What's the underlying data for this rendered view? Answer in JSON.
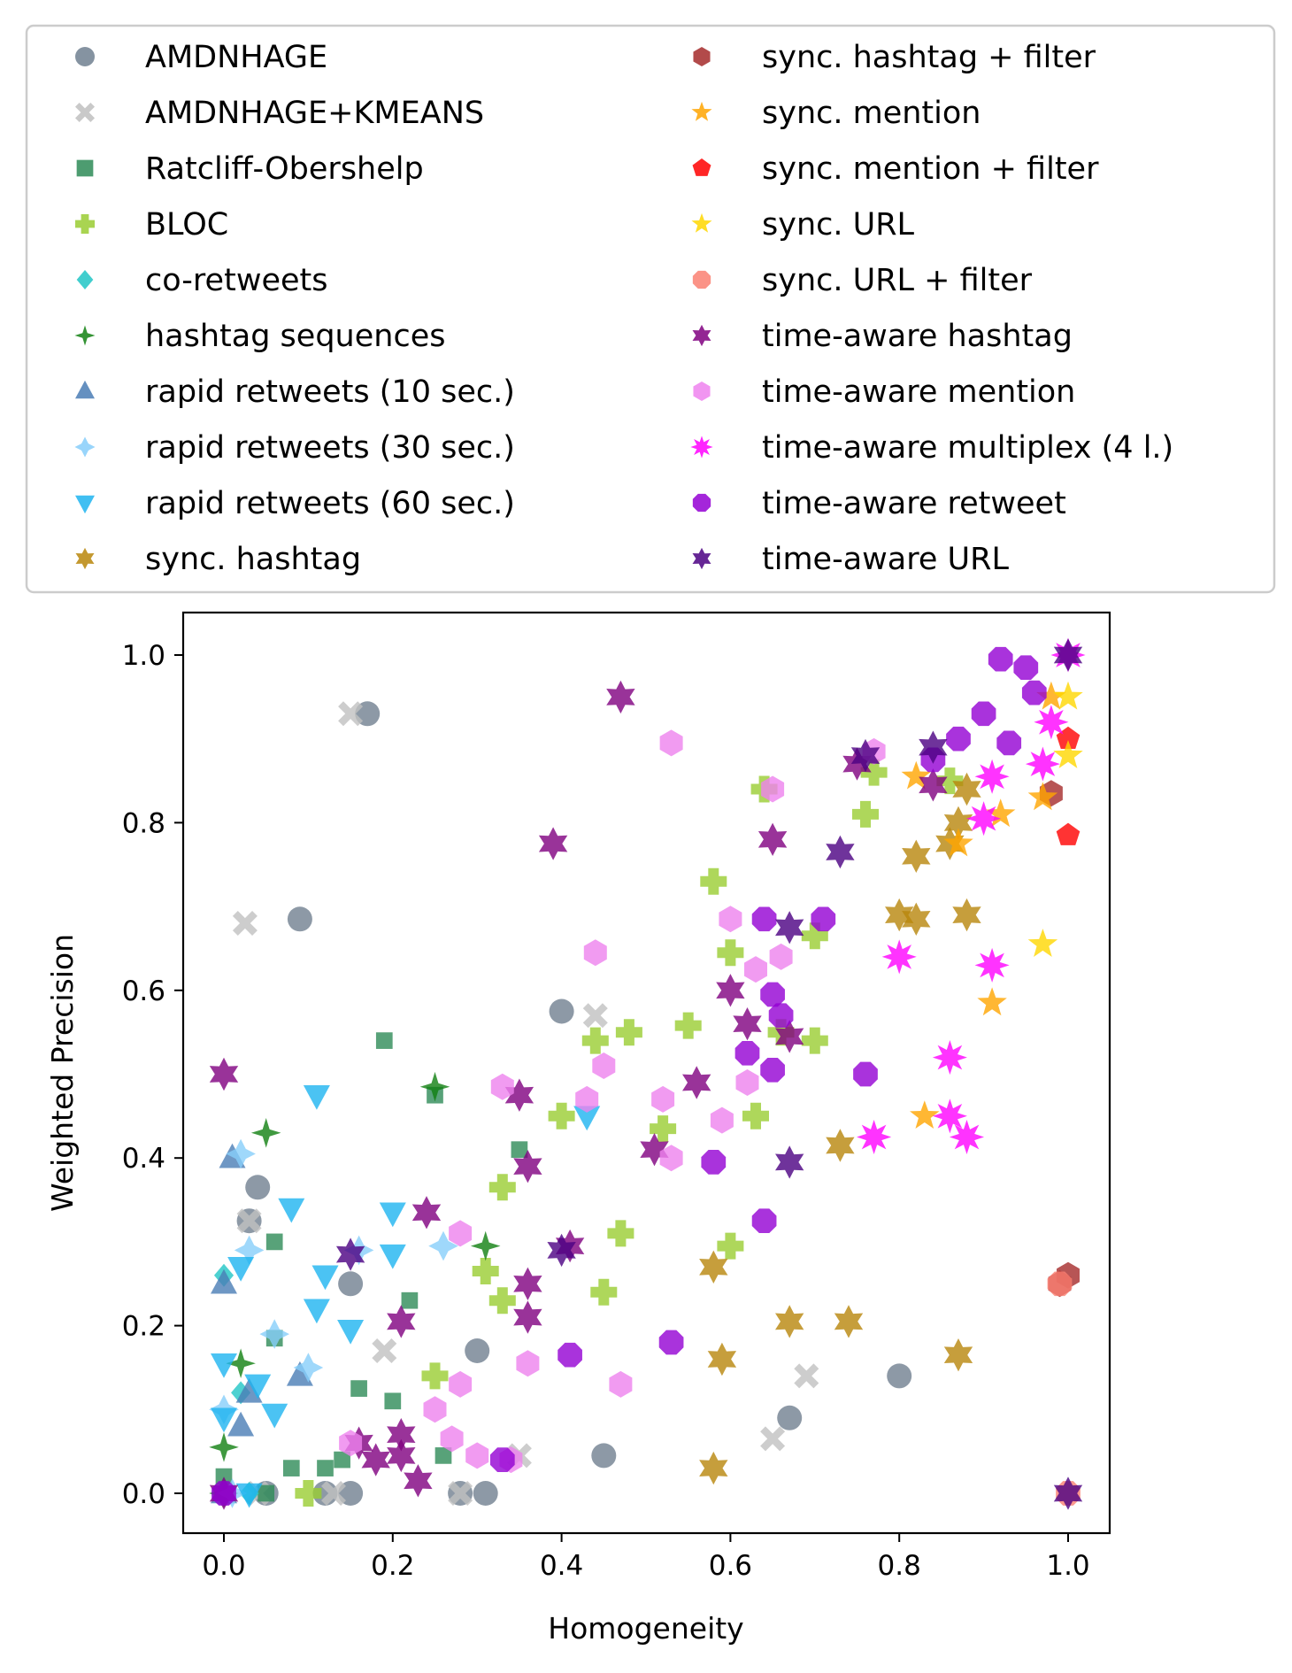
{
  "chart_data": {
    "type": "scatter",
    "title": "",
    "xlabel": "Homogeneity",
    "ylabel": "Weighted Precision",
    "xlim": [
      -0.05,
      1.05
    ],
    "ylim": [
      -0.05,
      1.05
    ],
    "xticks": [
      "0.0",
      "0.2",
      "0.4",
      "0.6",
      "0.8",
      "1.0"
    ],
    "yticks": [
      "0.0",
      "0.2",
      "0.4",
      "0.6",
      "0.8",
      "1.0"
    ],
    "grid": false,
    "legend_position": "top",
    "series": [
      {
        "name": "AMDNHAGE",
        "marker": "circle",
        "color": "#708090",
        "points": [
          [
            0.17,
            0.93
          ],
          [
            0.09,
            0.685
          ],
          [
            0.4,
            0.575
          ],
          [
            0.04,
            0.365
          ],
          [
            0.03,
            0.325
          ],
          [
            0.15,
            0.25
          ],
          [
            0.3,
            0.17
          ],
          [
            0.8,
            0.14
          ],
          [
            0.67,
            0.09
          ],
          [
            0.45,
            0.045
          ],
          [
            0.12,
            0.0
          ],
          [
            0.15,
            0.0
          ],
          [
            0.28,
            0.0
          ],
          [
            0.31,
            0.0
          ],
          [
            0.0,
            0.0
          ],
          [
            0.05,
            0.0
          ]
        ]
      },
      {
        "name": "AMDNHAGE+KMEANS",
        "marker": "x",
        "color": "#c0c0c0",
        "points": [
          [
            0.15,
            0.93
          ],
          [
            0.025,
            0.68
          ],
          [
            0.44,
            0.57
          ],
          [
            0.03,
            0.325
          ],
          [
            0.19,
            0.17
          ],
          [
            0.69,
            0.14
          ],
          [
            0.65,
            0.065
          ],
          [
            0.35,
            0.045
          ],
          [
            0.13,
            0.0
          ],
          [
            0.28,
            0.0
          ],
          [
            0.04,
            0.0
          ]
        ]
      },
      {
        "name": "Ratcliff-Obershelp",
        "marker": "square",
        "color": "#2e8b57",
        "points": [
          [
            0.19,
            0.54
          ],
          [
            0.25,
            0.475
          ],
          [
            0.35,
            0.41
          ],
          [
            0.06,
            0.3
          ],
          [
            0.22,
            0.23
          ],
          [
            0.06,
            0.185
          ],
          [
            0.16,
            0.125
          ],
          [
            0.2,
            0.11
          ],
          [
            0.08,
            0.03
          ],
          [
            0.12,
            0.03
          ],
          [
            0.14,
            0.04
          ],
          [
            0.26,
            0.045
          ],
          [
            0.05,
            0.0
          ],
          [
            0.0,
            0.02
          ]
        ]
      },
      {
        "name": "BLOC",
        "marker": "plus",
        "color": "#9acd32",
        "points": [
          [
            0.64,
            0.84
          ],
          [
            0.77,
            0.86
          ],
          [
            0.76,
            0.81
          ],
          [
            0.86,
            0.85
          ],
          [
            0.58,
            0.73
          ],
          [
            0.6,
            0.645
          ],
          [
            0.7,
            0.665
          ],
          [
            0.55,
            0.558
          ],
          [
            0.44,
            0.54
          ],
          [
            0.48,
            0.55
          ],
          [
            0.7,
            0.54
          ],
          [
            0.66,
            0.55
          ],
          [
            0.4,
            0.45
          ],
          [
            0.52,
            0.435
          ],
          [
            0.63,
            0.45
          ],
          [
            0.33,
            0.365
          ],
          [
            0.31,
            0.265
          ],
          [
            0.33,
            0.23
          ],
          [
            0.47,
            0.31
          ],
          [
            0.6,
            0.295
          ],
          [
            0.45,
            0.24
          ],
          [
            0.25,
            0.14
          ],
          [
            0.1,
            0.0
          ]
        ]
      },
      {
        "name": "co-retweets",
        "marker": "diamond",
        "color": "#20c5c5",
        "points": [
          [
            0.0,
            0.26
          ],
          [
            0.02,
            0.12
          ],
          [
            0.0,
            0.0
          ],
          [
            0.03,
            0.0
          ]
        ]
      },
      {
        "name": "hashtag sequences",
        "marker": "thin_diamond",
        "color": "#108010",
        "points": [
          [
            0.25,
            0.485
          ],
          [
            0.05,
            0.43
          ],
          [
            0.31,
            0.295
          ],
          [
            0.0,
            0.055
          ],
          [
            0.02,
            0.155
          ],
          [
            0.0,
            0.0
          ]
        ]
      },
      {
        "name": "rapid retweets (10 sec.)",
        "marker": "triangle_up",
        "color": "#4a7db5",
        "points": [
          [
            0.01,
            0.4
          ],
          [
            0.0,
            0.25
          ],
          [
            0.03,
            0.12
          ],
          [
            0.02,
            0.08
          ],
          [
            0.09,
            0.14
          ],
          [
            0.0,
            0.0
          ]
        ]
      },
      {
        "name": "rapid retweets (30 sec.)",
        "marker": "star4",
        "color": "#87cefa",
        "points": [
          [
            0.02,
            0.405
          ],
          [
            0.03,
            0.29
          ],
          [
            0.26,
            0.295
          ],
          [
            0.16,
            0.29
          ],
          [
            0.0,
            0.1
          ],
          [
            0.06,
            0.19
          ],
          [
            0.1,
            0.15
          ],
          [
            0.01,
            0.0
          ]
        ]
      },
      {
        "name": "rapid retweets (60 sec.)",
        "marker": "triangle_down",
        "color": "#1eb4f0",
        "points": [
          [
            0.11,
            0.475
          ],
          [
            0.43,
            0.45
          ],
          [
            0.08,
            0.34
          ],
          [
            0.2,
            0.335
          ],
          [
            0.2,
            0.285
          ],
          [
            0.12,
            0.26
          ],
          [
            0.02,
            0.27
          ],
          [
            0.11,
            0.22
          ],
          [
            0.15,
            0.195
          ],
          [
            0.06,
            0.095
          ],
          [
            0.0,
            0.155
          ],
          [
            0.04,
            0.13
          ],
          [
            0.0,
            0.09
          ],
          [
            0.03,
            0.0
          ]
        ]
      },
      {
        "name": "sync. hashtag",
        "marker": "star6",
        "color": "#b8860b",
        "points": [
          [
            0.87,
            0.8
          ],
          [
            0.86,
            0.775
          ],
          [
            0.88,
            0.84
          ],
          [
            0.82,
            0.76
          ],
          [
            0.8,
            0.69
          ],
          [
            0.82,
            0.685
          ],
          [
            0.88,
            0.69
          ],
          [
            0.73,
            0.415
          ],
          [
            0.58,
            0.27
          ],
          [
            0.67,
            0.205
          ],
          [
            0.74,
            0.205
          ],
          [
            0.59,
            0.16
          ],
          [
            0.87,
            0.165
          ],
          [
            0.58,
            0.03
          ]
        ]
      },
      {
        "name": "sync. hashtag + filter",
        "marker": "hexagon",
        "color": "#a52a2a",
        "points": [
          [
            0.98,
            0.835
          ],
          [
            1.0,
            0.26
          ],
          [
            0.99,
            0.25
          ]
        ]
      },
      {
        "name": "sync. mention",
        "marker": "star5",
        "color": "#ffa500",
        "points": [
          [
            0.82,
            0.855
          ],
          [
            0.87,
            0.775
          ],
          [
            0.92,
            0.81
          ],
          [
            0.97,
            0.83
          ],
          [
            0.91,
            0.585
          ],
          [
            0.83,
            0.45
          ],
          [
            0.98,
            0.95
          ]
        ]
      },
      {
        "name": "sync. mention + filter",
        "marker": "pentagon",
        "color": "#ff0000",
        "points": [
          [
            1.0,
            0.785
          ],
          [
            1.0,
            0.9
          ]
        ]
      },
      {
        "name": "sync. URL",
        "marker": "star5",
        "color": "#ffd700",
        "points": [
          [
            0.97,
            0.655
          ],
          [
            1.0,
            0.88
          ],
          [
            1.0,
            0.95
          ]
        ]
      },
      {
        "name": "sync. URL + filter",
        "marker": "octagon",
        "color": "#fa8072",
        "points": [
          [
            0.99,
            0.25
          ],
          [
            1.0,
            0.0
          ]
        ]
      },
      {
        "name": "time-aware hashtag",
        "marker": "star6",
        "color": "#800080",
        "points": [
          [
            0.47,
            0.95
          ],
          [
            0.39,
            0.775
          ],
          [
            0.65,
            0.78
          ],
          [
            0.75,
            0.87
          ],
          [
            0.84,
            0.845
          ],
          [
            0.6,
            0.6
          ],
          [
            0.62,
            0.56
          ],
          [
            0.67,
            0.545
          ],
          [
            0.56,
            0.49
          ],
          [
            0.51,
            0.41
          ],
          [
            0.35,
            0.475
          ],
          [
            0.36,
            0.39
          ],
          [
            0.36,
            0.25
          ],
          [
            0.36,
            0.21
          ],
          [
            0.41,
            0.295
          ],
          [
            0.24,
            0.335
          ],
          [
            0.21,
            0.205
          ],
          [
            0.0,
            0.5
          ],
          [
            0.16,
            0.06
          ],
          [
            0.18,
            0.04
          ],
          [
            0.21,
            0.045
          ],
          [
            0.21,
            0.07
          ],
          [
            0.23,
            0.015
          ],
          [
            0.0,
            0.0
          ]
        ]
      },
      {
        "name": "time-aware mention",
        "marker": "hexagon",
        "color": "#ee82ee",
        "points": [
          [
            0.53,
            0.895
          ],
          [
            0.65,
            0.84
          ],
          [
            0.77,
            0.885
          ],
          [
            0.6,
            0.685
          ],
          [
            0.44,
            0.645
          ],
          [
            0.66,
            0.64
          ],
          [
            0.63,
            0.625
          ],
          [
            0.45,
            0.51
          ],
          [
            0.33,
            0.485
          ],
          [
            0.43,
            0.47
          ],
          [
            0.52,
            0.47
          ],
          [
            0.59,
            0.445
          ],
          [
            0.53,
            0.4
          ],
          [
            0.62,
            0.49
          ],
          [
            0.28,
            0.31
          ],
          [
            0.28,
            0.13
          ],
          [
            0.25,
            0.1
          ],
          [
            0.36,
            0.155
          ],
          [
            0.47,
            0.13
          ],
          [
            0.27,
            0.065
          ],
          [
            0.3,
            0.045
          ],
          [
            0.34,
            0.04
          ],
          [
            0.15,
            0.06
          ]
        ]
      },
      {
        "name": "time-aware multiplex (4 l.)",
        "marker": "star8",
        "color": "#ff00ff",
        "points": [
          [
            0.91,
            0.855
          ],
          [
            0.9,
            0.805
          ],
          [
            0.97,
            0.87
          ],
          [
            0.98,
            0.92
          ],
          [
            0.8,
            0.64
          ],
          [
            0.91,
            0.63
          ],
          [
            0.86,
            0.52
          ],
          [
            0.86,
            0.45
          ],
          [
            0.88,
            0.425
          ],
          [
            0.77,
            0.425
          ],
          [
            1.0,
            1.0
          ]
        ]
      },
      {
        "name": "time-aware retweet",
        "marker": "octagon",
        "color": "#9400d3",
        "points": [
          [
            0.92,
            0.995
          ],
          [
            0.9,
            0.93
          ],
          [
            0.93,
            0.895
          ],
          [
            0.87,
            0.9
          ],
          [
            0.84,
            0.875
          ],
          [
            0.95,
            0.985
          ],
          [
            0.96,
            0.955
          ],
          [
            0.64,
            0.685
          ],
          [
            0.71,
            0.685
          ],
          [
            0.65,
            0.595
          ],
          [
            0.66,
            0.57
          ],
          [
            0.62,
            0.525
          ],
          [
            0.65,
            0.505
          ],
          [
            0.76,
            0.5
          ],
          [
            0.58,
            0.395
          ],
          [
            0.64,
            0.325
          ],
          [
            0.53,
            0.18
          ],
          [
            0.41,
            0.165
          ],
          [
            0.33,
            0.04
          ],
          [
            0.0,
            0.0
          ]
        ]
      },
      {
        "name": "time-aware URL",
        "marker": "star6",
        "color": "#4b0082",
        "points": [
          [
            0.76,
            0.88
          ],
          [
            0.84,
            0.89
          ],
          [
            0.73,
            0.765
          ],
          [
            0.67,
            0.675
          ],
          [
            0.67,
            0.395
          ],
          [
            0.4,
            0.29
          ],
          [
            0.15,
            0.285
          ],
          [
            1.0,
            1.0
          ],
          [
            1.0,
            0.0
          ]
        ]
      }
    ]
  }
}
